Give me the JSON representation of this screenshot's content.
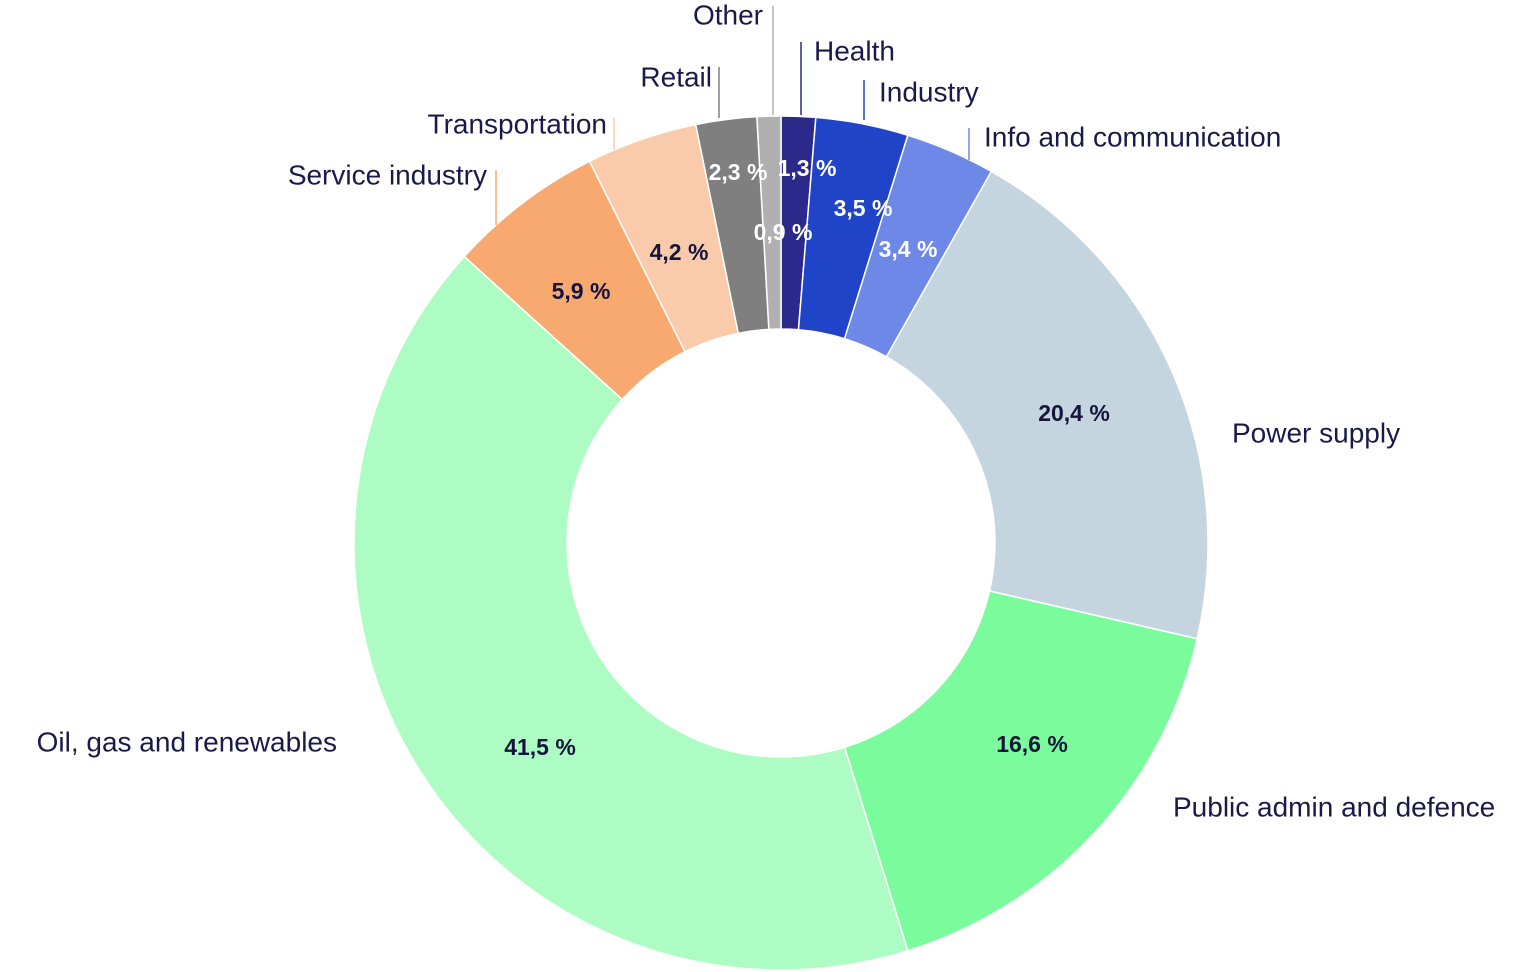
{
  "chart_data": {
    "type": "pie",
    "categories": [
      "Health",
      "Industry",
      "Info and communication",
      "Power supply",
      "Public admin and defence",
      "Oil, gas and renewables",
      "Service industry",
      "Transportation",
      "Retail",
      "Other"
    ],
    "values": [
      1.3,
      3.5,
      3.4,
      20.4,
      16.6,
      41.5,
      5.9,
      4.2,
      2.3,
      0.9
    ],
    "value_labels": [
      "1,3 %",
      "3,5 %",
      "3,4 %",
      "20,4 %",
      "16,6 %",
      "41,5 %",
      "5,9 %",
      "4,2 %",
      "2,3 %",
      "0,9 %"
    ],
    "colors": [
      "#2b2a8a",
      "#1f44c8",
      "#6e88e8",
      "#c4d5e0",
      "#7bfc9c",
      "#adfcc4",
      "#f7a970",
      "#facbab",
      "#7f7f7f",
      "#b0b0b0"
    ]
  }
}
